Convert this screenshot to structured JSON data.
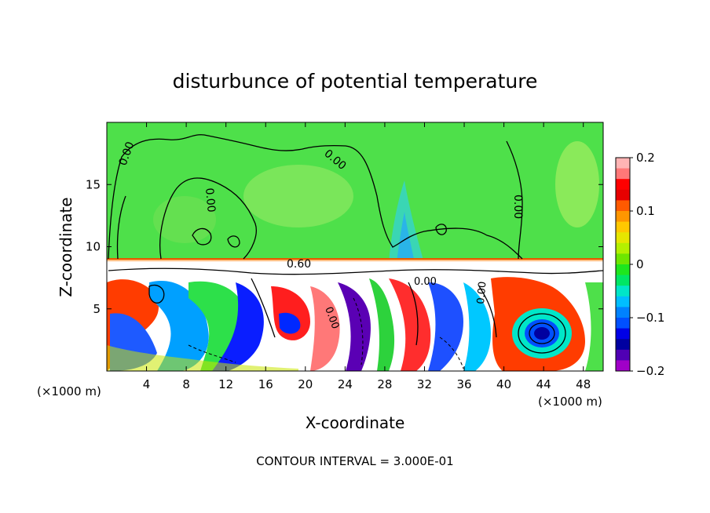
{
  "chart_data": {
    "type": "heatmap",
    "title": "disturbunce of potential temperature",
    "xlabel": "X-coordinate",
    "ylabel": "Z-coordinate",
    "x_unit": "(×1000 m)",
    "x_unit_right": "(×1000 m)",
    "xlim": [
      0,
      50
    ],
    "ylim": [
      0,
      20
    ],
    "x_ticks": [
      4,
      8,
      12,
      16,
      20,
      24,
      28,
      32,
      36,
      40,
      44,
      48
    ],
    "y_ticks": [
      5,
      10,
      15
    ],
    "colorbar": {
      "range": [
        -0.2,
        0.2
      ],
      "tick_values": [
        0.2,
        0.1,
        0,
        -0.1,
        -0.2
      ],
      "tick_labels": [
        "0.2",
        "0.1",
        "0",
        "−0.1",
        "−0.2"
      ],
      "colors": [
        "#ffb4b4",
        "#ff7878",
        "#ff0000",
        "#e60000",
        "#ff5a00",
        "#ff9600",
        "#ffc800",
        "#e6e600",
        "#b4f000",
        "#6ee600",
        "#1ee61e",
        "#00e664",
        "#00e6c8",
        "#00beff",
        "#0082ff",
        "#0050ff",
        "#0000e6",
        "#0000a0",
        "#5000b4",
        "#a000c8"
      ]
    },
    "contour_labels": [
      "0.00",
      "0.00",
      "0.00",
      "0.00",
      "0.60",
      "0.00",
      "0.00",
      "0.00"
    ],
    "footer": "CONTOUR INTERVAL = 3.000E-01"
  }
}
